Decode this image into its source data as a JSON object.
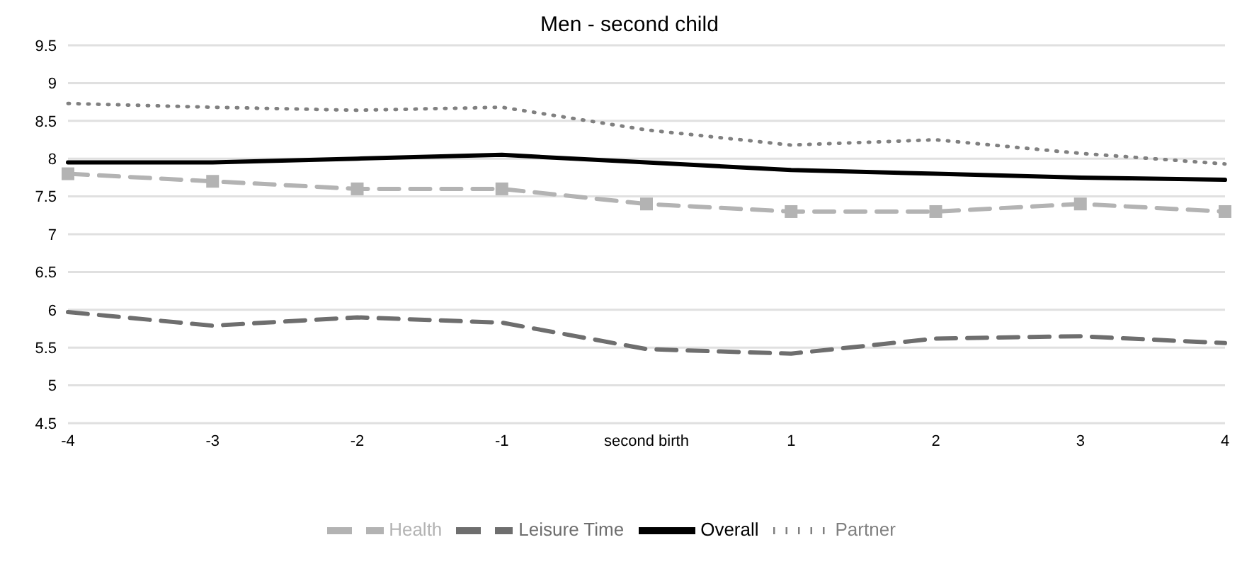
{
  "chart_data": {
    "type": "line",
    "title": "Men - second child",
    "categories": [
      "-4",
      "-3",
      "-2",
      "-1",
      "second birth",
      "1",
      "2",
      "3",
      "4"
    ],
    "series": [
      {
        "name": "Overall",
        "color": "#000000",
        "line_style": "solid",
        "marker": "none",
        "values": [
          7.95,
          7.95,
          8.0,
          8.05,
          7.95,
          7.85,
          7.8,
          7.75,
          7.72
        ]
      },
      {
        "name": "Partner",
        "color": "#808080",
        "line_style": "dotted",
        "marker": "none",
        "values": [
          8.73,
          8.68,
          8.64,
          8.68,
          8.38,
          8.18,
          8.25,
          8.07,
          7.93
        ]
      },
      {
        "name": "Leisure Time",
        "color": "#6e6e6e",
        "line_style": "dashed",
        "marker": "none",
        "values": [
          5.97,
          5.79,
          5.9,
          5.83,
          5.48,
          5.42,
          5.62,
          5.65,
          5.56
        ]
      },
      {
        "name": "Health",
        "color": "#b3b3b3",
        "line_style": "dashed",
        "marker": "square",
        "values": [
          7.8,
          7.7,
          7.6,
          7.6,
          7.4,
          7.3,
          7.3,
          7.4,
          7.3
        ]
      }
    ],
    "ylim": [
      4.5,
      9.5
    ],
    "yticks": [
      4.5,
      5,
      5.5,
      6,
      6.5,
      7,
      7.5,
      8,
      8.5,
      9,
      9.5
    ],
    "grid": "y",
    "legend": "bottom"
  }
}
